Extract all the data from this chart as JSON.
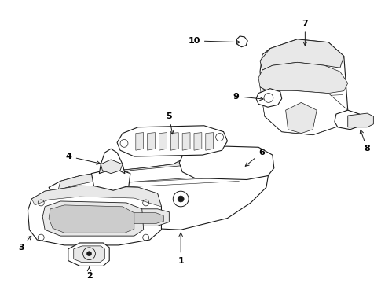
{
  "background_color": "#ffffff",
  "line_color": "#1a1a1a",
  "label_color": "#000000",
  "figsize": [
    4.9,
    3.6
  ],
  "dpi": 100,
  "label_fontsize": 8,
  "label_fontweight": "bold",
  "arrow_lw": 0.7,
  "part_lw": 0.8,
  "part_fill": "#ffffff",
  "part_shade": "#e8e8e8",
  "part_dark": "#cccccc"
}
